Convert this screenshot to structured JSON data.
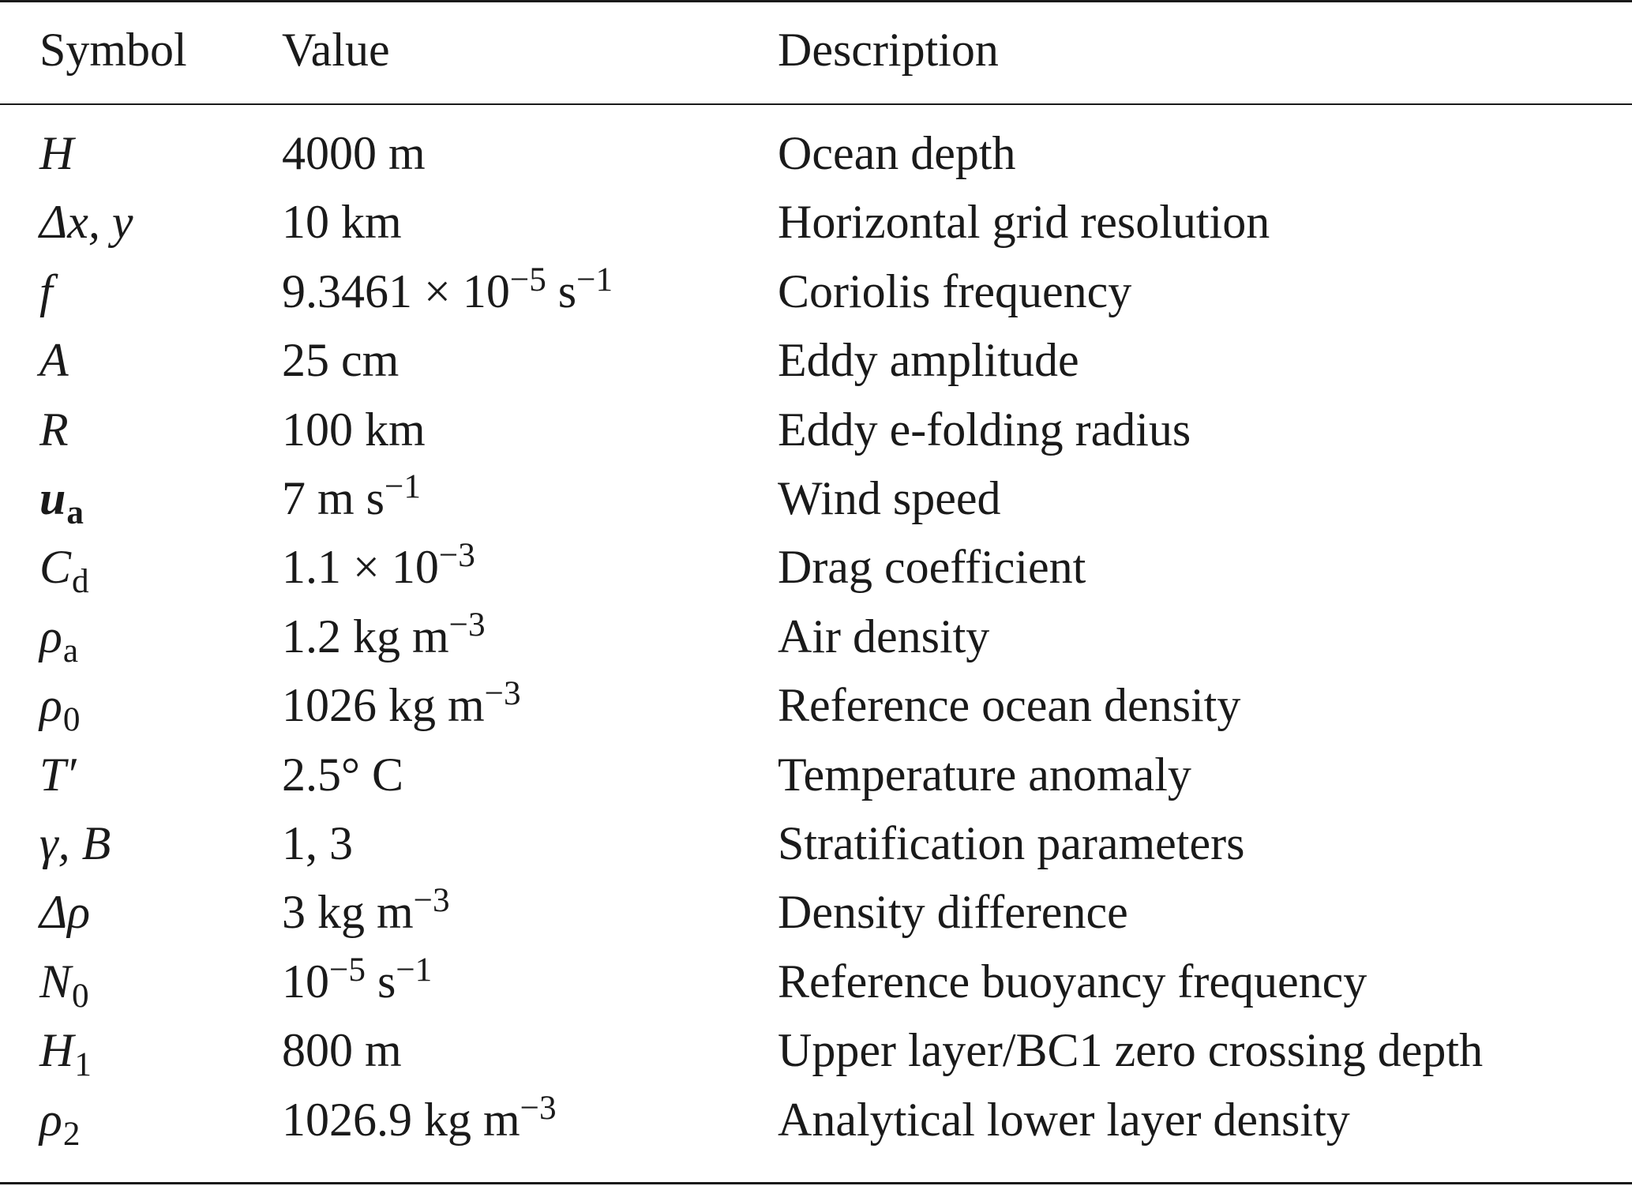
{
  "table": {
    "headers": [
      "Symbol",
      "Value",
      "Description"
    ],
    "rows": [
      {
        "symbol": {
          "main": "H",
          "sub": "",
          "bold": false
        },
        "value": {
          "text": "4000 m",
          "sup": ""
        },
        "description": "Ocean depth"
      },
      {
        "symbol": {
          "main": "Δx, y",
          "sub": "",
          "bold": false
        },
        "value": {
          "text": "10 km",
          "sup": ""
        },
        "description": "Horizontal grid resolution"
      },
      {
        "symbol": {
          "main": "f",
          "sub": "",
          "bold": false
        },
        "value": {
          "text": "9.3461 × 10",
          "sup": "−5",
          "text2": " s",
          "sup2": "−1"
        },
        "description": "Coriolis frequency"
      },
      {
        "symbol": {
          "main": "A",
          "sub": "",
          "bold": false
        },
        "value": {
          "text": "25 cm",
          "sup": ""
        },
        "description": "Eddy amplitude"
      },
      {
        "symbol": {
          "main": "R",
          "sub": "",
          "bold": false
        },
        "value": {
          "text": "100 km",
          "sup": ""
        },
        "description": "Eddy e-folding radius"
      },
      {
        "symbol": {
          "main": "u",
          "sub": "a",
          "bold": true
        },
        "value": {
          "text": "7 m s",
          "sup": "−1"
        },
        "description": "Wind speed"
      },
      {
        "symbol": {
          "main": "C",
          "sub": "d",
          "bold": false
        },
        "value": {
          "text": "1.1 × 10",
          "sup": "−3"
        },
        "description": "Drag coefficient"
      },
      {
        "symbol": {
          "main": "ρ",
          "sub": "a",
          "bold": false
        },
        "value": {
          "text": "1.2 kg m",
          "sup": "−3"
        },
        "description": "Air density"
      },
      {
        "symbol": {
          "main": "ρ",
          "sub": "0",
          "bold": false
        },
        "value": {
          "text": "1026 kg m",
          "sup": "−3"
        },
        "description": "Reference ocean density"
      },
      {
        "symbol": {
          "main": "T′",
          "sub": "",
          "bold": false
        },
        "value": {
          "text": "2.5° C",
          "sup": ""
        },
        "description": "Temperature anomaly"
      },
      {
        "symbol": {
          "main": "γ, B",
          "sub": "",
          "bold": false
        },
        "value": {
          "text": "1, 3",
          "sup": ""
        },
        "description": "Stratification parameters"
      },
      {
        "symbol": {
          "main": "Δρ",
          "sub": "",
          "bold": false
        },
        "value": {
          "text": "3 kg m",
          "sup": "−3"
        },
        "description": "Density difference"
      },
      {
        "symbol": {
          "main": "N",
          "sub": "0",
          "bold": false
        },
        "value": {
          "text": "10",
          "sup": "−5",
          "text2": " s",
          "sup2": "−1"
        },
        "description": "Reference buoyancy frequency"
      },
      {
        "symbol": {
          "main": "H",
          "sub": "1",
          "bold": false
        },
        "value": {
          "text": "800 m",
          "sup": ""
        },
        "description": "Upper layer/BC1 zero crossing depth"
      },
      {
        "symbol": {
          "main": "ρ",
          "sub": "2",
          "bold": false
        },
        "value": {
          "text": "1026.9 kg m",
          "sup": "−3"
        },
        "description": "Analytical lower layer density"
      }
    ]
  }
}
